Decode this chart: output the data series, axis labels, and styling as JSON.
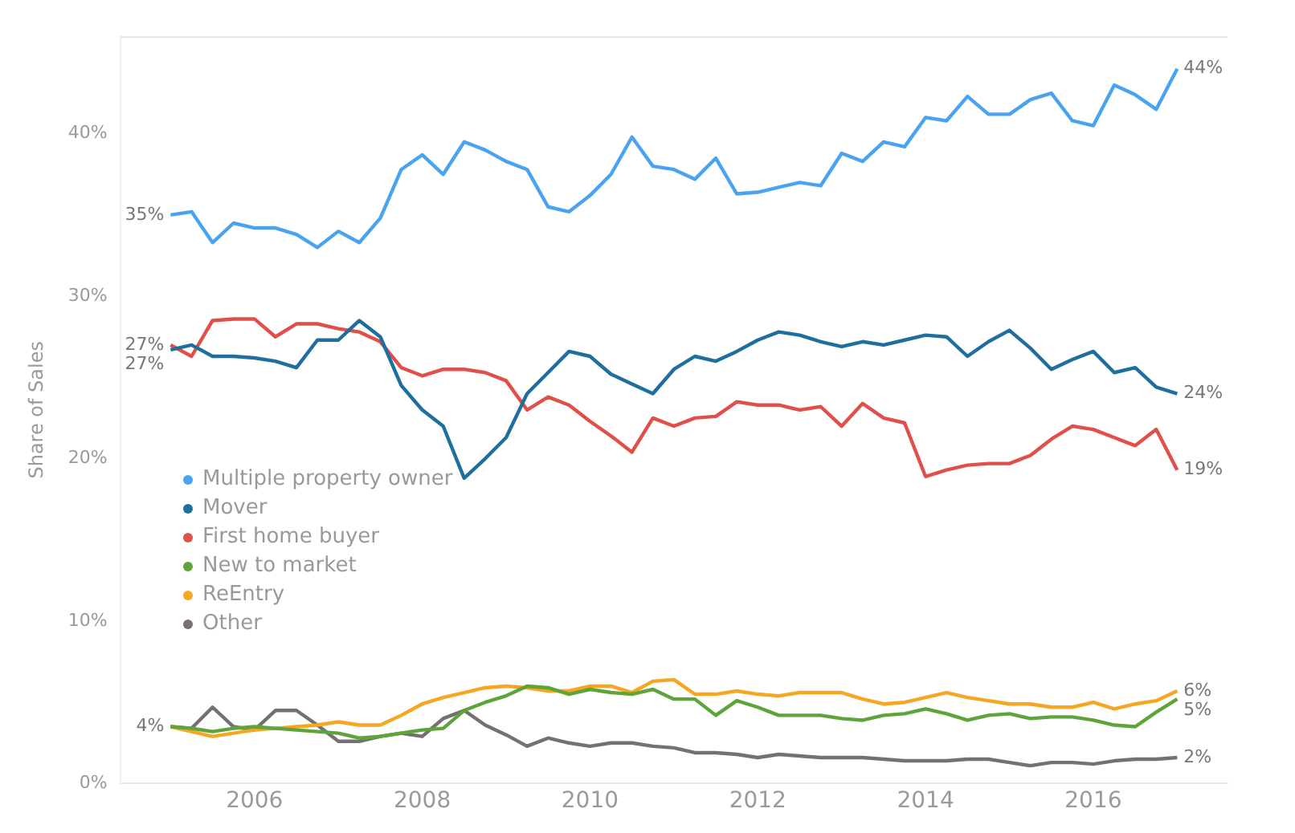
{
  "chart_data": {
    "type": "line",
    "ylabel": "Share of Sales",
    "x": [
      2005,
      2005.25,
      2005.5,
      2005.75,
      2006,
      2006.25,
      2006.5,
      2006.75,
      2007,
      2007.25,
      2007.5,
      2007.75,
      2008,
      2008.25,
      2008.5,
      2008.75,
      2009,
      2009.25,
      2009.5,
      2009.75,
      2010,
      2010.25,
      2010.5,
      2010.75,
      2011,
      2011.25,
      2011.5,
      2011.75,
      2012,
      2012.25,
      2012.5,
      2012.75,
      2013,
      2013.25,
      2013.5,
      2013.75,
      2014,
      2014.25,
      2014.5,
      2014.75,
      2015,
      2015.25,
      2015.5,
      2015.75,
      2016,
      2016.25,
      2016.5,
      2016.75,
      2017
    ],
    "series": [
      {
        "name": "Multiple property owner",
        "color": "#4aa3f0",
        "values": [
          35,
          35.2,
          33.3,
          34.5,
          34.2,
          34.2,
          33.8,
          33,
          34,
          33.3,
          34.8,
          37.8,
          38.7,
          37.5,
          39.5,
          39,
          38.3,
          37.8,
          35.5,
          35.2,
          36.2,
          37.5,
          39.8,
          38,
          37.8,
          37.2,
          38.5,
          36.3,
          36.4,
          36.7,
          37,
          36.8,
          38.8,
          38.3,
          39.5,
          39.2,
          41,
          40.8,
          42.3,
          41.2,
          41.2,
          42.1,
          42.5,
          40.8,
          40.5,
          43,
          42.4,
          41.5,
          44
        ],
        "value_labels": [
          "35%",
          null,
          null,
          null,
          null,
          null,
          null,
          null,
          null,
          null,
          null,
          null,
          null,
          null,
          null,
          null,
          null,
          null,
          null,
          null,
          null,
          null,
          null,
          null,
          null,
          null,
          null,
          null,
          null,
          null,
          null,
          null,
          null,
          null,
          null,
          null,
          null,
          null,
          null,
          null,
          null,
          null,
          null,
          null,
          null,
          null,
          null,
          null,
          "44%"
        ]
      },
      {
        "name": "Mover",
        "color": "#1f6f9e",
        "values": [
          26.7,
          27,
          26.3,
          26.3,
          26.2,
          26,
          25.6,
          27.3,
          27.3,
          28.5,
          27.5,
          24.5,
          23,
          22,
          18.8,
          20,
          21.3,
          24,
          25.3,
          26.6,
          26.3,
          25.2,
          24.6,
          24,
          25.5,
          26.3,
          26,
          26.6,
          27.3,
          27.8,
          27.6,
          27.2,
          26.9,
          27.2,
          27,
          27.3,
          27.6,
          27.5,
          26.3,
          27.2,
          27.9,
          26.8,
          25.5,
          26.1,
          26.6,
          25.3,
          25.6,
          24.4,
          24
        ],
        "value_labels": [
          "27%",
          null,
          null,
          null,
          null,
          null,
          null,
          null,
          null,
          null,
          null,
          null,
          null,
          null,
          null,
          null,
          null,
          null,
          null,
          null,
          null,
          null,
          null,
          null,
          null,
          null,
          null,
          null,
          null,
          null,
          null,
          null,
          null,
          null,
          null,
          null,
          null,
          null,
          null,
          null,
          null,
          null,
          null,
          null,
          null,
          null,
          null,
          null,
          "24%"
        ]
      },
      {
        "name": "First home buyer",
        "color": "#e0504a",
        "values": [
          27,
          26.3,
          28.5,
          28.6,
          28.6,
          27.5,
          28.3,
          28.3,
          28,
          27.8,
          27.2,
          25.6,
          25.1,
          25.5,
          25.5,
          25.3,
          24.8,
          23,
          23.8,
          23.3,
          22.3,
          21.4,
          20.4,
          22.5,
          22,
          22.5,
          22.6,
          23.5,
          23.3,
          23.3,
          23,
          23.2,
          22,
          23.4,
          22.5,
          22.2,
          18.9,
          19.3,
          19.6,
          19.7,
          19.7,
          20.2,
          21.2,
          22,
          21.8,
          21.3,
          20.8,
          21.8,
          19.3
        ],
        "value_labels": [
          "27%",
          null,
          null,
          null,
          null,
          null,
          null,
          null,
          null,
          null,
          null,
          null,
          null,
          null,
          null,
          null,
          null,
          null,
          null,
          null,
          null,
          null,
          null,
          null,
          null,
          null,
          null,
          null,
          null,
          null,
          null,
          null,
          null,
          null,
          null,
          null,
          null,
          null,
          null,
          null,
          null,
          null,
          null,
          null,
          null,
          null,
          null,
          null,
          "19%"
        ]
      },
      {
        "name": "New to market",
        "color": "#5ea43a",
        "values": [
          3.5,
          3.4,
          3.2,
          3.4,
          3.5,
          3.4,
          3.3,
          3.2,
          3.1,
          2.8,
          2.9,
          3.1,
          3.3,
          3.4,
          4.5,
          5,
          5.4,
          6,
          5.9,
          5.5,
          5.8,
          5.6,
          5.5,
          5.8,
          5.2,
          5.2,
          4.2,
          5.1,
          4.7,
          4.2,
          4.2,
          4.2,
          4,
          3.9,
          4.2,
          4.3,
          4.6,
          4.3,
          3.9,
          4.2,
          4.3,
          4,
          4.1,
          4.1,
          3.9,
          3.6,
          3.5,
          4.4,
          5.2
        ],
        "value_labels": [
          "4%",
          null,
          null,
          null,
          null,
          null,
          null,
          null,
          null,
          null,
          null,
          null,
          null,
          null,
          null,
          null,
          null,
          null,
          null,
          null,
          null,
          null,
          null,
          null,
          null,
          null,
          null,
          null,
          null,
          null,
          null,
          null,
          null,
          null,
          null,
          null,
          null,
          null,
          null,
          null,
          null,
          null,
          null,
          null,
          null,
          null,
          null,
          null,
          "5%"
        ]
      },
      {
        "name": "ReEntry",
        "color": "#f5a623",
        "values": [
          3.5,
          3.2,
          2.9,
          3.1,
          3.3,
          3.4,
          3.5,
          3.6,
          3.8,
          3.6,
          3.6,
          4.2,
          4.9,
          5.3,
          5.6,
          5.9,
          6,
          5.9,
          5.7,
          5.7,
          6,
          6,
          5.6,
          6.3,
          6.4,
          5.5,
          5.5,
          5.7,
          5.5,
          5.4,
          5.6,
          5.6,
          5.6,
          5.2,
          4.9,
          5,
          5.3,
          5.6,
          5.3,
          5.1,
          4.9,
          4.9,
          4.7,
          4.7,
          5,
          4.6,
          4.9,
          5.1,
          5.7
        ],
        "value_labels": [
          null,
          null,
          null,
          null,
          null,
          null,
          null,
          null,
          null,
          null,
          null,
          null,
          null,
          null,
          null,
          null,
          null,
          null,
          null,
          null,
          null,
          null,
          null,
          null,
          null,
          null,
          null,
          null,
          null,
          null,
          null,
          null,
          null,
          null,
          null,
          null,
          null,
          null,
          null,
          null,
          null,
          null,
          null,
          null,
          null,
          null,
          null,
          null,
          "6%"
        ]
      },
      {
        "name": "Other",
        "color": "#777070",
        "values": [
          3.5,
          3.4,
          4.7,
          3.5,
          3.3,
          4.5,
          4.5,
          3.6,
          2.6,
          2.6,
          2.9,
          3.1,
          2.9,
          4,
          4.5,
          3.6,
          3,
          2.3,
          2.8,
          2.5,
          2.3,
          2.5,
          2.5,
          2.3,
          2.2,
          1.9,
          1.9,
          1.8,
          1.6,
          1.8,
          1.7,
          1.6,
          1.6,
          1.6,
          1.5,
          1.4,
          1.4,
          1.4,
          1.5,
          1.5,
          1.3,
          1.1,
          1.3,
          1.3,
          1.2,
          1.4,
          1.5,
          1.5,
          1.6
        ],
        "value_labels": [
          null,
          null,
          null,
          null,
          null,
          null,
          null,
          null,
          null,
          null,
          null,
          null,
          null,
          null,
          null,
          null,
          null,
          null,
          null,
          null,
          null,
          null,
          null,
          null,
          null,
          null,
          null,
          null,
          null,
          null,
          null,
          null,
          null,
          null,
          null,
          null,
          null,
          null,
          null,
          null,
          null,
          null,
          null,
          null,
          null,
          null,
          null,
          null,
          "2%"
        ]
      }
    ],
    "xlim": [
      2004.4,
      2017.6
    ],
    "xticks": [
      2006,
      2008,
      2010,
      2012,
      2014,
      2016
    ],
    "ylim": [
      0,
      46
    ],
    "yticks": [
      {
        "value": 0,
        "label": "0%"
      },
      {
        "value": 10,
        "label": "10%"
      },
      {
        "value": 20,
        "label": "20%"
      },
      {
        "value": 30,
        "label": "30%"
      },
      {
        "value": 40,
        "label": "40%"
      }
    ],
    "grid": false,
    "legend": "left",
    "marker": "none",
    "line_style": "solid"
  }
}
